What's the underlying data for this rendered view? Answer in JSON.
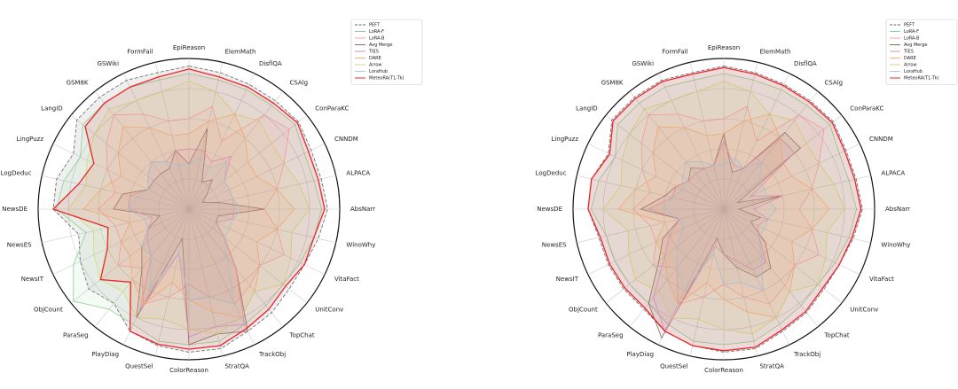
{
  "chart_data": [
    {
      "type": "radar",
      "rlim": [
        0,
        1
      ],
      "rticks": [
        0.2,
        0.4,
        0.6,
        0.8,
        1
      ],
      "grid": true,
      "legend": "upper right",
      "categories": [
        "EpiReason",
        "ElemMath",
        "DisflQA",
        "CSAlg",
        "ConParaKC",
        "CNNDM",
        "ALPACA",
        "AbsNarr",
        "WinoWhy",
        "VitaFact",
        "UnitConv",
        "TopChat",
        "TrackObj",
        "StratQA",
        "ColorReason",
        "QuestSel",
        "PlayDiag",
        "ParaSeg",
        "ObjCount",
        "NewsIT",
        "NewsES",
        "NewsDE",
        "LogDeduc",
        "LingPuzz",
        "LangID",
        "GSM8K",
        "GSWiki",
        "FormFail"
      ],
      "series": [
        {
          "name": "PEFT",
          "color": "#666666",
          "dashed": true,
          "values": [
            0.95,
            0.93,
            0.92,
            0.92,
            0.93,
            0.9,
            0.9,
            0.92,
            0.88,
            0.85,
            0.85,
            0.88,
            0.9,
            0.95,
            0.95,
            0.93,
            0.9,
            0.8,
            0.85,
            0.8,
            0.75,
            0.9,
            0.9,
            0.85,
            0.95,
            0.95,
            0.95,
            0.93
          ]
        },
        {
          "name": "LoRA-F",
          "color": "#8fd18f",
          "values": [
            0.9,
            0.88,
            0.88,
            0.88,
            0.9,
            0.85,
            0.85,
            0.88,
            0.85,
            0.82,
            0.8,
            0.82,
            0.85,
            0.9,
            0.9,
            0.9,
            0.85,
            0.85,
            0.98,
            0.85,
            0.7,
            0.88,
            0.85,
            0.8,
            0.9,
            0.9,
            0.9,
            0.88
          ]
        },
        {
          "name": "LoRA-B",
          "color": "#f4a3a8",
          "values": [
            0.6,
            0.7,
            0.5,
            0.8,
            0.85,
            0.7,
            0.6,
            0.5,
            0.6,
            0.7,
            0.6,
            0.65,
            0.7,
            0.6,
            0.5,
            0.6,
            0.7,
            0.5,
            0.6,
            0.5,
            0.5,
            0.6,
            0.5,
            0.6,
            0.7,
            0.8,
            0.7,
            0.6
          ]
        },
        {
          "name": "Avg Merge",
          "color": "#8c6d62",
          "values": [
            0.3,
            0.55,
            0.2,
            0.25,
            0.15,
            0.1,
            0.2,
            0.5,
            0.2,
            0.2,
            0.3,
            0.5,
            0.9,
            0.85,
            0.9,
            0.2,
            0.8,
            0.5,
            0.4,
            0.3,
            0.2,
            0.5,
            0.45,
            0.3,
            0.3,
            0.3,
            0.3,
            0.4
          ]
        },
        {
          "name": "TIES",
          "color": "#d98fc8",
          "values": [
            0.4,
            0.4,
            0.35,
            0.45,
            0.3,
            0.3,
            0.3,
            0.3,
            0.3,
            0.2,
            0.3,
            0.5,
            0.85,
            0.8,
            0.85,
            0.3,
            0.75,
            0.4,
            0.35,
            0.3,
            0.25,
            0.4,
            0.4,
            0.3,
            0.35,
            0.4,
            0.35,
            0.4
          ]
        },
        {
          "name": "DARE",
          "color": "#f2b27a",
          "values": [
            0.5,
            0.6,
            0.7,
            0.6,
            0.5,
            0.5,
            0.6,
            0.7,
            0.6,
            0.5,
            0.6,
            0.7,
            0.8,
            0.7,
            0.6,
            0.5,
            0.7,
            0.6,
            0.5,
            0.5,
            0.4,
            0.7,
            0.6,
            0.5,
            0.6,
            0.7,
            0.6,
            0.5
          ]
        },
        {
          "name": "Arrow",
          "color": "#d4d97a",
          "values": [
            0.85,
            0.8,
            0.7,
            0.75,
            0.7,
            0.7,
            0.75,
            0.8,
            0.7,
            0.75,
            0.8,
            0.7,
            0.8,
            0.85,
            0.8,
            0.75,
            0.8,
            0.7,
            0.75,
            0.7,
            0.65,
            0.8,
            0.7,
            0.75,
            0.8,
            0.85,
            0.8,
            0.8
          ]
        },
        {
          "name": "LoraHub",
          "color": "#9fd0e0",
          "values": [
            0.3,
            0.35,
            0.3,
            0.4,
            0.3,
            0.3,
            0.3,
            0.35,
            0.3,
            0.3,
            0.3,
            0.4,
            0.7,
            0.6,
            0.6,
            0.3,
            0.6,
            0.4,
            0.4,
            0.3,
            0.3,
            0.4,
            0.35,
            0.3,
            0.35,
            0.4,
            0.35,
            0.3
          ]
        },
        {
          "name": "MeteoRA(T1-Tk)",
          "color": "#e8262a",
          "values": [
            0.93,
            0.9,
            0.9,
            0.9,
            0.92,
            0.88,
            0.88,
            0.9,
            0.85,
            0.85,
            0.82,
            0.85,
            0.88,
            0.93,
            0.93,
            0.92,
            0.9,
            0.62,
            0.75,
            0.6,
            0.55,
            0.9,
            0.75,
            0.7,
            0.88,
            0.9,
            0.9,
            0.9
          ]
        }
      ]
    },
    {
      "type": "radar",
      "rlim": [
        0,
        1
      ],
      "rticks": [
        0.2,
        0.4,
        0.6,
        0.8,
        1
      ],
      "grid": true,
      "legend": "upper right",
      "categories": [
        "EpiReason",
        "ElemMath",
        "DisflQA",
        "CSAlg",
        "ConParaKC",
        "CNNDM",
        "ALPACA",
        "AbsNarr",
        "WinoWhy",
        "VitaFact",
        "UnitConv",
        "TopChat",
        "TrackObj",
        "StratQA",
        "ColorReason",
        "QuestSel",
        "PlayDiag",
        "ParaSeg",
        "ObjCount",
        "NewsIT",
        "NewsES",
        "NewsDE",
        "LogDeduc",
        "LingPuzz",
        "LangID",
        "GSM8K",
        "GSWiki",
        "FormFail"
      ],
      "series": [
        {
          "name": "PEFT",
          "color": "#666666",
          "dashed": true,
          "values": [
            0.95,
            0.93,
            0.92,
            0.92,
            0.93,
            0.9,
            0.9,
            0.92,
            0.88,
            0.85,
            0.85,
            0.88,
            0.9,
            0.95,
            0.95,
            0.93,
            0.9,
            0.85,
            0.85,
            0.85,
            0.85,
            0.9,
            0.9,
            0.85,
            0.95,
            0.95,
            0.95,
            0.93
          ]
        },
        {
          "name": "LoRA-F",
          "color": "#8fd18f",
          "values": [
            0.9,
            0.88,
            0.88,
            0.88,
            0.9,
            0.85,
            0.85,
            0.88,
            0.85,
            0.82,
            0.8,
            0.82,
            0.85,
            0.9,
            0.9,
            0.9,
            0.85,
            0.8,
            0.8,
            0.8,
            0.8,
            0.88,
            0.85,
            0.8,
            0.9,
            0.9,
            0.9,
            0.88
          ]
        },
        {
          "name": "LoRA-B",
          "color": "#f4a3a8",
          "values": [
            0.6,
            0.7,
            0.5,
            0.8,
            0.85,
            0.7,
            0.6,
            0.5,
            0.6,
            0.7,
            0.6,
            0.65,
            0.7,
            0.6,
            0.5,
            0.6,
            0.7,
            0.5,
            0.6,
            0.5,
            0.5,
            0.6,
            0.5,
            0.6,
            0.7,
            0.8,
            0.7,
            0.6
          ]
        },
        {
          "name": "Avg Merge",
          "color": "#8c6d62",
          "values": [
            0.5,
            0.25,
            0.3,
            0.65,
            0.65,
            0.1,
            0.4,
            0.1,
            0.25,
            0.2,
            0.35,
            0.5,
            0.5,
            0.4,
            0.3,
            0.2,
            0.95,
            0.8,
            0.55,
            0.45,
            0.3,
            0.55,
            0.4,
            0.35,
            0.3,
            0.35,
            0.3,
            0.3
          ]
        },
        {
          "name": "TIES",
          "color": "#d98fc8",
          "values": [
            0.45,
            0.3,
            0.3,
            0.6,
            0.6,
            0.2,
            0.4,
            0.2,
            0.3,
            0.25,
            0.3,
            0.45,
            0.45,
            0.35,
            0.3,
            0.25,
            0.9,
            0.75,
            0.5,
            0.4,
            0.3,
            0.5,
            0.35,
            0.35,
            0.3,
            0.3,
            0.3,
            0.3
          ]
        },
        {
          "name": "DARE",
          "color": "#f2b27a",
          "values": [
            0.5,
            0.6,
            0.7,
            0.6,
            0.5,
            0.5,
            0.6,
            0.7,
            0.6,
            0.5,
            0.6,
            0.7,
            0.8,
            0.7,
            0.6,
            0.5,
            0.7,
            0.6,
            0.5,
            0.5,
            0.4,
            0.7,
            0.6,
            0.5,
            0.6,
            0.7,
            0.6,
            0.5
          ]
        },
        {
          "name": "Arrow",
          "color": "#d4d97a",
          "values": [
            0.85,
            0.8,
            0.7,
            0.75,
            0.7,
            0.7,
            0.75,
            0.8,
            0.7,
            0.75,
            0.8,
            0.7,
            0.8,
            0.85,
            0.8,
            0.75,
            0.8,
            0.7,
            0.75,
            0.7,
            0.65,
            0.8,
            0.7,
            0.75,
            0.8,
            0.85,
            0.8,
            0.8
          ]
        },
        {
          "name": "LoraHub",
          "color": "#9fd0e0",
          "values": [
            0.3,
            0.35,
            0.3,
            0.4,
            0.3,
            0.3,
            0.3,
            0.35,
            0.3,
            0.3,
            0.3,
            0.4,
            0.6,
            0.5,
            0.5,
            0.3,
            0.6,
            0.5,
            0.4,
            0.3,
            0.3,
            0.4,
            0.35,
            0.3,
            0.35,
            0.4,
            0.35,
            0.3
          ]
        },
        {
          "name": "MeteoRA(T1-Tk)",
          "color": "#e8262a",
          "values": [
            0.94,
            0.92,
            0.91,
            0.91,
            0.92,
            0.89,
            0.89,
            0.91,
            0.87,
            0.85,
            0.84,
            0.87,
            0.89,
            0.94,
            0.94,
            0.93,
            0.9,
            0.84,
            0.84,
            0.84,
            0.84,
            0.9,
            0.9,
            0.84,
            0.94,
            0.94,
            0.94,
            0.92
          ]
        }
      ]
    }
  ]
}
